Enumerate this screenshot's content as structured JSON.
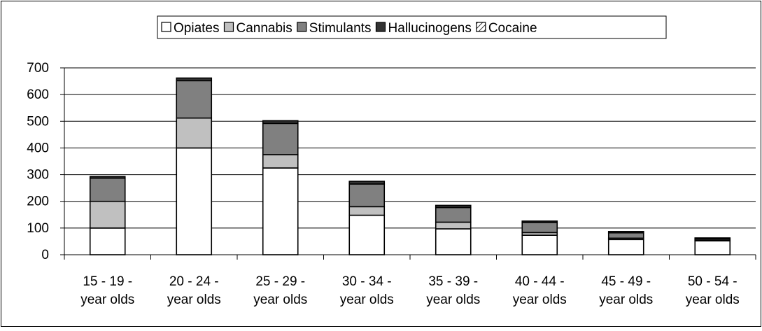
{
  "chart_data": {
    "type": "bar",
    "stacked": true,
    "categories": [
      [
        "15 - 19 -",
        "year olds"
      ],
      [
        "20 - 24 -",
        "year olds"
      ],
      [
        "25 - 29 -",
        "year olds"
      ],
      [
        "30 - 34 -",
        "year olds"
      ],
      [
        "35 - 39 -",
        "year olds"
      ],
      [
        "40 - 44 -",
        "year olds"
      ],
      [
        "45 - 49 -",
        "year olds"
      ],
      [
        "50 - 54 -",
        "year olds"
      ]
    ],
    "series": [
      {
        "name": "Opiates",
        "color": "#ffffff",
        "pattern": "none",
        "values": [
          100,
          400,
          325,
          148,
          97,
          73,
          57,
          52
        ]
      },
      {
        "name": "Cannabis",
        "color": "#c0c0c0",
        "pattern": "none",
        "values": [
          100,
          112,
          50,
          32,
          25,
          10,
          5,
          3
        ]
      },
      {
        "name": "Stimulants",
        "color": "#808080",
        "pattern": "none",
        "values": [
          87,
          140,
          117,
          85,
          55,
          38,
          20,
          5
        ]
      },
      {
        "name": "Hallucinogens",
        "color": "#333333",
        "pattern": "none",
        "values": [
          6,
          10,
          10,
          10,
          8,
          5,
          5,
          3
        ]
      },
      {
        "name": "Cocaine",
        "color": "#ffffff",
        "pattern": "diagonal",
        "values": [
          0,
          0,
          0,
          0,
          0,
          0,
          0,
          0
        ]
      }
    ],
    "yticks": [
      0,
      100,
      200,
      300,
      400,
      500,
      600,
      700
    ],
    "ylim": [
      0,
      700
    ],
    "grid": true,
    "legend_position": "top"
  }
}
